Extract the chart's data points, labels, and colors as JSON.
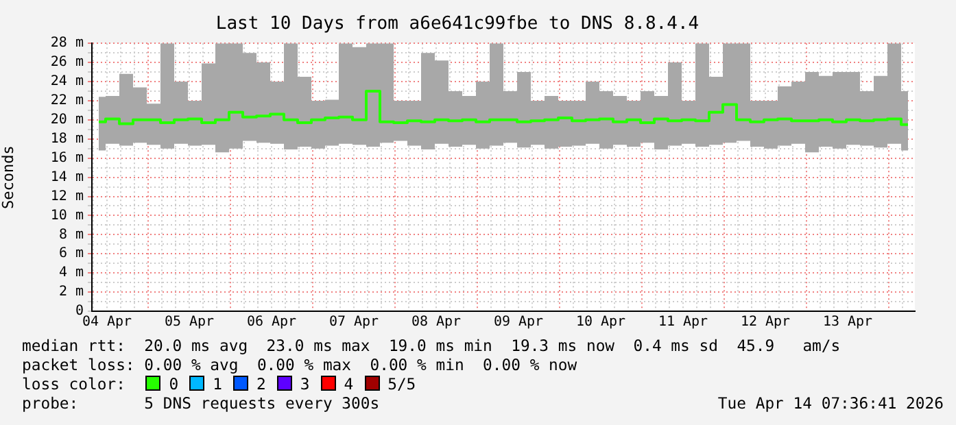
{
  "chart_data": {
    "type": "step",
    "title": "Last 10 Days from a6e641c99fbe to DNS 8.8.4.4",
    "ylabel": "Seconds",
    "x": [
      "2026-04-04T09:36",
      "2026-04-04T13:36",
      "2026-04-04T17:36",
      "2026-04-04T21:36",
      "2026-04-05T01:36",
      "2026-04-05T05:36",
      "2026-04-05T09:36",
      "2026-04-05T13:36",
      "2026-04-05T17:36",
      "2026-04-05T21:36",
      "2026-04-06T01:36",
      "2026-04-06T05:36",
      "2026-04-06T09:36",
      "2026-04-06T13:36",
      "2026-04-06T17:36",
      "2026-04-06T21:36",
      "2026-04-07T01:36",
      "2026-04-07T05:36",
      "2026-04-07T09:36",
      "2026-04-07T13:36",
      "2026-04-07T17:36",
      "2026-04-07T21:36",
      "2026-04-08T01:36",
      "2026-04-08T05:36",
      "2026-04-08T09:36",
      "2026-04-08T13:36",
      "2026-04-08T17:36",
      "2026-04-08T21:36",
      "2026-04-09T01:36",
      "2026-04-09T05:36",
      "2026-04-09T09:36",
      "2026-04-09T13:36",
      "2026-04-09T17:36",
      "2026-04-09T21:36",
      "2026-04-10T01:36",
      "2026-04-10T05:36",
      "2026-04-10T09:36",
      "2026-04-10T13:36",
      "2026-04-10T17:36",
      "2026-04-10T21:36",
      "2026-04-11T01:36",
      "2026-04-11T05:36",
      "2026-04-11T09:36",
      "2026-04-11T13:36",
      "2026-04-11T17:36",
      "2026-04-11T21:36",
      "2026-04-12T01:36",
      "2026-04-12T05:36",
      "2026-04-12T09:36",
      "2026-04-12T13:36",
      "2026-04-12T17:36",
      "2026-04-12T21:36",
      "2026-04-13T01:36",
      "2026-04-13T05:36",
      "2026-04-13T09:36",
      "2026-04-13T13:36",
      "2026-04-13T17:36",
      "2026-04-13T21:36",
      "2026-04-14T01:36",
      "2026-04-14T05:36"
    ],
    "series": [
      {
        "name": "0",
        "color": "#26ff00",
        "values": [
          19.8,
          20.1,
          19.6,
          20.0,
          20.0,
          19.7,
          20.0,
          20.1,
          19.7,
          20.0,
          20.8,
          20.3,
          20.4,
          20.6,
          20.0,
          19.7,
          20.0,
          20.2,
          20.3,
          20.0,
          23.0,
          19.8,
          19.7,
          19.9,
          19.8,
          20.0,
          19.9,
          20.0,
          19.8,
          20.0,
          20.0,
          19.8,
          19.9,
          20.0,
          20.2,
          19.9,
          20.0,
          20.1,
          19.8,
          20.0,
          19.7,
          20.1,
          19.9,
          20.0,
          19.9,
          20.8,
          21.6,
          20.0,
          19.8,
          20.0,
          20.1,
          19.9,
          19.9,
          20.0,
          19.8,
          20.0,
          19.9,
          20.0,
          20.1,
          19.5
        ],
        "lower": [
          16.8,
          17.5,
          17.3,
          17.6,
          17.4,
          17.0,
          17.5,
          17.3,
          17.4,
          16.6,
          17.0,
          17.8,
          17.6,
          17.5,
          16.9,
          17.2,
          17.0,
          17.3,
          17.5,
          17.4,
          17.2,
          17.6,
          17.8,
          17.3,
          16.9,
          17.5,
          17.2,
          17.4,
          17.0,
          17.3,
          17.6,
          17.1,
          17.4,
          17.0,
          17.2,
          17.3,
          17.5,
          17.0,
          17.4,
          17.2,
          17.6,
          16.9,
          17.3,
          17.5,
          17.2,
          17.4,
          17.6,
          17.8,
          17.2,
          17.0,
          17.3,
          17.5,
          16.6,
          17.2,
          17.0,
          17.4,
          17.3,
          17.1,
          17.5,
          16.8
        ],
        "upper": [
          22.4,
          22.5,
          24.8,
          23.4,
          21.7,
          28,
          24,
          22,
          25.9,
          28,
          28,
          27,
          26,
          24,
          28,
          24.5,
          22,
          22.1,
          28,
          27.6,
          28,
          28,
          22,
          22,
          27,
          26.2,
          23,
          22.5,
          24,
          28,
          23,
          25,
          22,
          22.5,
          22,
          22,
          24,
          23,
          22.5,
          22,
          23,
          22.5,
          26,
          22,
          28,
          24.5,
          28,
          28,
          22,
          22,
          23.5,
          24,
          25,
          24.6,
          25,
          25,
          23,
          24.6,
          28,
          23
        ]
      },
      {
        "name": "1",
        "color": "#00b8ff",
        "values": [
          null,
          null,
          null,
          null,
          null,
          null,
          null,
          null,
          null,
          null,
          null,
          null,
          null,
          null,
          null,
          null,
          null,
          null,
          null,
          null,
          null,
          null,
          null,
          null,
          null,
          null,
          null,
          null,
          null,
          null,
          null,
          null,
          null,
          null,
          null,
          null,
          null,
          null,
          null,
          null,
          null,
          null,
          null,
          null,
          null,
          null,
          null,
          null,
          null,
          null,
          null,
          null,
          null,
          null,
          null,
          null,
          null,
          null,
          null,
          null
        ]
      },
      {
        "name": "2",
        "color": "#0059ff",
        "values": [
          null,
          null,
          null,
          null,
          null,
          null,
          null,
          null,
          null,
          null,
          null,
          null,
          null,
          null,
          null,
          null,
          null,
          null,
          null,
          null,
          null,
          null,
          null,
          null,
          null,
          null,
          null,
          null,
          null,
          null,
          null,
          null,
          null,
          null,
          null,
          null,
          null,
          null,
          null,
          null,
          null,
          null,
          null,
          null,
          null,
          null,
          null,
          null,
          null,
          null,
          null,
          null,
          null,
          null,
          null,
          null,
          null,
          null,
          null,
          null
        ]
      },
      {
        "name": "3",
        "color": "#5e00ff",
        "values": [
          null,
          null,
          null,
          null,
          null,
          null,
          null,
          null,
          null,
          null,
          null,
          null,
          null,
          null,
          null,
          null,
          null,
          null,
          null,
          null,
          null,
          null,
          null,
          null,
          null,
          null,
          null,
          null,
          null,
          null,
          null,
          null,
          null,
          null,
          null,
          null,
          null,
          null,
          null,
          null,
          null,
          null,
          null,
          null,
          null,
          null,
          null,
          null,
          null,
          null,
          null,
          null,
          null,
          null,
          null,
          null,
          null,
          null,
          null,
          null
        ]
      },
      {
        "name": "4",
        "color": "#ff0000",
        "values": [
          null,
          null,
          null,
          null,
          null,
          null,
          null,
          null,
          null,
          null,
          null,
          null,
          null,
          null,
          null,
          null,
          null,
          null,
          null,
          null,
          null,
          null,
          null,
          null,
          null,
          null,
          null,
          null,
          null,
          null,
          null,
          null,
          null,
          null,
          null,
          null,
          null,
          null,
          null,
          null,
          null,
          null,
          null,
          null,
          null,
          null,
          null,
          null,
          null,
          null,
          null,
          null,
          null,
          null,
          null,
          null,
          null,
          null,
          null,
          null
        ]
      },
      {
        "name": "5/5",
        "color": "#a10000",
        "values": [
          null,
          null,
          null,
          null,
          null,
          null,
          null,
          null,
          null,
          null,
          null,
          null,
          null,
          null,
          null,
          null,
          null,
          null,
          null,
          null,
          null,
          null,
          null,
          null,
          null,
          null,
          null,
          null,
          null,
          null,
          null,
          null,
          null,
          null,
          null,
          null,
          null,
          null,
          null,
          null,
          null,
          null,
          null,
          null,
          null,
          null,
          null,
          null,
          null,
          null,
          null,
          null,
          null,
          null,
          null,
          null,
          null,
          null,
          null,
          null
        ]
      }
    ],
    "legend": "bottom",
    "legend_title": "loss color:",
    "grid": true,
    "xlim": [
      "2026-04-04T07:36",
      "2026-04-14T07:36"
    ],
    "xticks": [
      {
        "value": "2026-04-04T08:00",
        "label": null
      },
      {
        "value": "2026-04-04T12:00",
        "label": "04 Apr"
      },
      {
        "value": "2026-04-04T16:00",
        "label": null
      },
      {
        "value": "2026-04-04T20:00",
        "label": null
      },
      {
        "value": "2026-04-05T00:00",
        "label": null
      },
      {
        "value": "2026-04-05T04:00",
        "label": null
      },
      {
        "value": "2026-04-05T08:00",
        "label": null
      },
      {
        "value": "2026-04-05T12:00",
        "label": "05 Apr"
      },
      {
        "value": "2026-04-05T16:00",
        "label": null
      },
      {
        "value": "2026-04-05T20:00",
        "label": null
      },
      {
        "value": "2026-04-06T00:00",
        "label": null
      },
      {
        "value": "2026-04-06T04:00",
        "label": null
      },
      {
        "value": "2026-04-06T08:00",
        "label": null
      },
      {
        "value": "2026-04-06T12:00",
        "label": "06 Apr"
      },
      {
        "value": "2026-04-06T16:00",
        "label": null
      },
      {
        "value": "2026-04-06T20:00",
        "label": null
      },
      {
        "value": "2026-04-07T00:00",
        "label": null
      },
      {
        "value": "2026-04-07T04:00",
        "label": null
      },
      {
        "value": "2026-04-07T08:00",
        "label": null
      },
      {
        "value": "2026-04-07T12:00",
        "label": "07 Apr"
      },
      {
        "value": "2026-04-07T16:00",
        "label": null
      },
      {
        "value": "2026-04-07T20:00",
        "label": null
      },
      {
        "value": "2026-04-08T00:00",
        "label": null
      },
      {
        "value": "2026-04-08T04:00",
        "label": null
      },
      {
        "value": "2026-04-08T08:00",
        "label": null
      },
      {
        "value": "2026-04-08T12:00",
        "label": "08 Apr"
      },
      {
        "value": "2026-04-08T16:00",
        "label": null
      },
      {
        "value": "2026-04-08T20:00",
        "label": null
      },
      {
        "value": "2026-04-09T00:00",
        "label": null
      },
      {
        "value": "2026-04-09T04:00",
        "label": null
      },
      {
        "value": "2026-04-09T08:00",
        "label": null
      },
      {
        "value": "2026-04-09T12:00",
        "label": "09 Apr"
      },
      {
        "value": "2026-04-09T16:00",
        "label": null
      },
      {
        "value": "2026-04-09T20:00",
        "label": null
      },
      {
        "value": "2026-04-10T00:00",
        "label": null
      },
      {
        "value": "2026-04-10T04:00",
        "label": null
      },
      {
        "value": "2026-04-10T08:00",
        "label": null
      },
      {
        "value": "2026-04-10T12:00",
        "label": "10 Apr"
      },
      {
        "value": "2026-04-10T16:00",
        "label": null
      },
      {
        "value": "2026-04-10T20:00",
        "label": null
      },
      {
        "value": "2026-04-11T00:00",
        "label": null
      },
      {
        "value": "2026-04-11T04:00",
        "label": null
      },
      {
        "value": "2026-04-11T08:00",
        "label": null
      },
      {
        "value": "2026-04-11T12:00",
        "label": "11 Apr"
      },
      {
        "value": "2026-04-11T16:00",
        "label": null
      },
      {
        "value": "2026-04-11T20:00",
        "label": null
      },
      {
        "value": "2026-04-12T00:00",
        "label": null
      },
      {
        "value": "2026-04-12T04:00",
        "label": null
      },
      {
        "value": "2026-04-12T08:00",
        "label": null
      },
      {
        "value": "2026-04-12T12:00",
        "label": "12 Apr"
      },
      {
        "value": "2026-04-12T16:00",
        "label": null
      },
      {
        "value": "2026-04-12T20:00",
        "label": null
      },
      {
        "value": "2026-04-13T00:00",
        "label": null
      },
      {
        "value": "2026-04-13T04:00",
        "label": null
      },
      {
        "value": "2026-04-13T08:00",
        "label": null
      },
      {
        "value": "2026-04-13T12:00",
        "label": "13 Apr"
      },
      {
        "value": "2026-04-13T16:00",
        "label": null
      },
      {
        "value": "2026-04-13T20:00",
        "label": null
      },
      {
        "value": "2026-04-14T00:00",
        "label": null
      },
      {
        "value": "2026-04-14T04:00",
        "label": null
      }
    ],
    "ylim": [
      0,
      28
    ],
    "yticks": [
      0,
      {
        "value": 1,
        "label": null
      },
      {
        "value": 2,
        "label": "2 m"
      },
      {
        "value": 3,
        "label": null
      },
      {
        "value": 4,
        "label": "4 m"
      },
      {
        "value": 5,
        "label": null
      },
      {
        "value": 6,
        "label": "6 m"
      },
      {
        "value": 7,
        "label": null
      },
      {
        "value": 8,
        "label": "8 m"
      },
      {
        "value": 9,
        "label": null
      },
      {
        "value": 10,
        "label": "10 m"
      },
      {
        "value": 11,
        "label": null
      },
      {
        "value": 12,
        "label": "12 m"
      },
      {
        "value": 13,
        "label": null
      },
      {
        "value": 14,
        "label": "14 m"
      },
      {
        "value": 15,
        "label": null
      },
      {
        "value": 16,
        "label": "16 m"
      },
      {
        "value": 17,
        "label": null
      },
      {
        "value": 18,
        "label": "18 m"
      },
      {
        "value": 19,
        "label": null
      },
      {
        "value": 20,
        "label": "20 m"
      },
      {
        "value": 21,
        "label": null
      },
      {
        "value": 22,
        "label": "22 m"
      },
      {
        "value": 23,
        "label": null
      },
      {
        "value": 24,
        "label": "24 m"
      },
      {
        "value": 25,
        "label": null
      },
      {
        "value": 26,
        "label": "26 m"
      },
      {
        "value": 27,
        "label": null
      },
      {
        "value": 28,
        "label": "28 m"
      }
    ],
    "annotations": [
      "median rtt:  20.0 ms avg  23.0 ms max  19.0 ms min  19.3 ms now  0.4 ms sd  45.9   am/s",
      "packet loss: 0.00 % avg  0.00 % max  0.00 % min  0.00 % now",
      "probe:       5 DNS requests every 300s",
      "Tue Apr 14 07:36:41 2026"
    ]
  }
}
